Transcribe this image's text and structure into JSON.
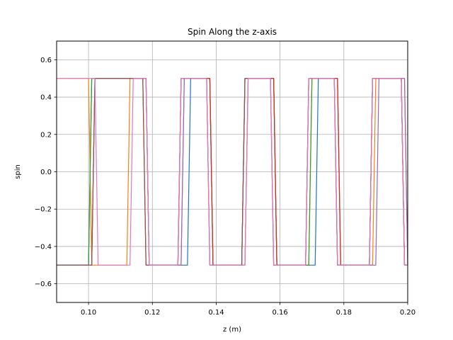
{
  "chart_data": {
    "type": "line",
    "title": "Spin Along the z-axis",
    "xlabel": "z (m)",
    "ylabel": "spin",
    "xlim": [
      0.09,
      0.2
    ],
    "ylim": [
      -0.7,
      0.7
    ],
    "xticks": [
      0.1,
      0.12,
      0.14,
      0.16,
      0.18,
      0.2
    ],
    "xtick_labels": [
      "0.10",
      "0.12",
      "0.14",
      "0.16",
      "0.18",
      "0.20"
    ],
    "yticks": [
      -0.6,
      -0.4,
      -0.2,
      0.0,
      0.2,
      0.4,
      0.6
    ],
    "ytick_labels": [
      "−0.6",
      "−0.4",
      "−0.2",
      "0.0",
      "0.2",
      "0.4",
      "0.6"
    ],
    "grid": true,
    "legend": "none",
    "series": [
      {
        "color": "#1f77b4",
        "x": [
          0.09,
          0.1,
          0.101,
          0.118,
          0.119,
          0.131,
          0.132,
          0.138,
          0.139,
          0.149,
          0.15,
          0.158,
          0.159,
          0.171,
          0.172,
          0.178,
          0.179,
          0.188,
          0.189,
          0.198,
          0.199,
          0.2
        ],
        "y": [
          -0.5,
          -0.5,
          0.5,
          0.5,
          -0.5,
          -0.5,
          0.5,
          0.5,
          -0.5,
          -0.5,
          0.5,
          0.5,
          -0.5,
          -0.5,
          0.5,
          0.5,
          -0.5,
          -0.5,
          0.5,
          0.5,
          -0.5,
          -0.5
        ]
      },
      {
        "color": "#ff7f0e",
        "x": [
          0.09,
          0.1,
          0.101,
          0.112,
          0.113,
          0.118,
          0.119,
          0.129,
          0.13,
          0.138,
          0.139,
          0.149,
          0.15,
          0.158,
          0.159,
          0.169,
          0.17,
          0.178,
          0.179,
          0.189,
          0.19,
          0.199,
          0.2
        ],
        "y": [
          0.5,
          0.5,
          -0.5,
          -0.5,
          0.5,
          0.5,
          -0.5,
          -0.5,
          0.5,
          0.5,
          -0.5,
          -0.5,
          0.5,
          0.5,
          -0.5,
          -0.5,
          0.5,
          0.5,
          -0.5,
          -0.5,
          0.5,
          0.5,
          -0.5
        ]
      },
      {
        "color": "#2ca02c",
        "x": [
          0.09,
          0.1,
          0.101,
          0.118,
          0.119,
          0.128,
          0.129,
          0.138,
          0.139,
          0.148,
          0.149,
          0.158,
          0.159,
          0.169,
          0.17,
          0.177,
          0.178,
          0.188,
          0.189,
          0.198,
          0.199,
          0.2
        ],
        "y": [
          -0.5,
          -0.5,
          0.5,
          0.5,
          -0.5,
          -0.5,
          0.5,
          0.5,
          -0.5,
          -0.5,
          0.5,
          0.5,
          -0.5,
          -0.5,
          0.5,
          0.5,
          -0.5,
          -0.5,
          0.5,
          0.5,
          -0.5,
          -0.5
        ]
      },
      {
        "color": "#d62728",
        "x": [
          0.09,
          0.101,
          0.102,
          0.117,
          0.118,
          0.128,
          0.129,
          0.138,
          0.139,
          0.148,
          0.149,
          0.158,
          0.159,
          0.168,
          0.169,
          0.178,
          0.179,
          0.188,
          0.189,
          0.198,
          0.199,
          0.2
        ],
        "y": [
          -0.5,
          -0.5,
          0.5,
          0.5,
          -0.5,
          -0.5,
          0.5,
          0.5,
          -0.5,
          -0.5,
          0.5,
          0.5,
          -0.5,
          -0.5,
          0.5,
          0.5,
          -0.5,
          -0.5,
          0.5,
          0.5,
          -0.5,
          -0.5
        ]
      },
      {
        "color": "#9467bd",
        "x": [
          0.09,
          0.101,
          0.102,
          0.118,
          0.119,
          0.129,
          0.13,
          0.137,
          0.138,
          0.148,
          0.149,
          0.157,
          0.158,
          0.168,
          0.169,
          0.177,
          0.178,
          0.19,
          0.191,
          0.199,
          0.2
        ],
        "y": [
          -0.5,
          -0.5,
          0.5,
          0.5,
          -0.5,
          -0.5,
          0.5,
          0.5,
          -0.5,
          -0.5,
          0.5,
          0.5,
          -0.5,
          -0.5,
          0.5,
          0.5,
          -0.5,
          -0.5,
          0.5,
          0.5,
          -0.5
        ]
      },
      {
        "color": "#8c564b",
        "x": [
          0.09,
          0.101,
          0.102,
          0.117,
          0.118,
          0.128,
          0.129,
          0.137,
          0.138,
          0.148,
          0.149,
          0.157,
          0.158,
          0.168,
          0.169,
          0.177,
          0.178,
          0.188,
          0.189,
          0.198,
          0.199,
          0.2
        ],
        "y": [
          -0.5,
          -0.5,
          0.5,
          0.5,
          -0.5,
          -0.5,
          0.5,
          0.5,
          -0.5,
          -0.5,
          0.5,
          0.5,
          -0.5,
          -0.5,
          0.5,
          0.5,
          -0.5,
          -0.5,
          0.5,
          0.5,
          -0.5,
          -0.5
        ]
      },
      {
        "color": "#e377c2",
        "x": [
          0.09,
          0.102,
          0.103,
          0.113,
          0.114,
          0.118,
          0.119,
          0.128,
          0.129,
          0.137,
          0.138,
          0.149,
          0.15,
          0.157,
          0.158,
          0.168,
          0.169,
          0.177,
          0.178,
          0.188,
          0.189,
          0.198,
          0.199,
          0.2
        ],
        "y": [
          0.5,
          0.5,
          -0.5,
          -0.5,
          0.5,
          0.5,
          -0.5,
          -0.5,
          0.5,
          0.5,
          -0.5,
          -0.5,
          0.5,
          0.5,
          -0.5,
          -0.5,
          0.5,
          0.5,
          -0.5,
          -0.5,
          0.5,
          0.5,
          -0.5,
          -0.5
        ]
      }
    ]
  }
}
